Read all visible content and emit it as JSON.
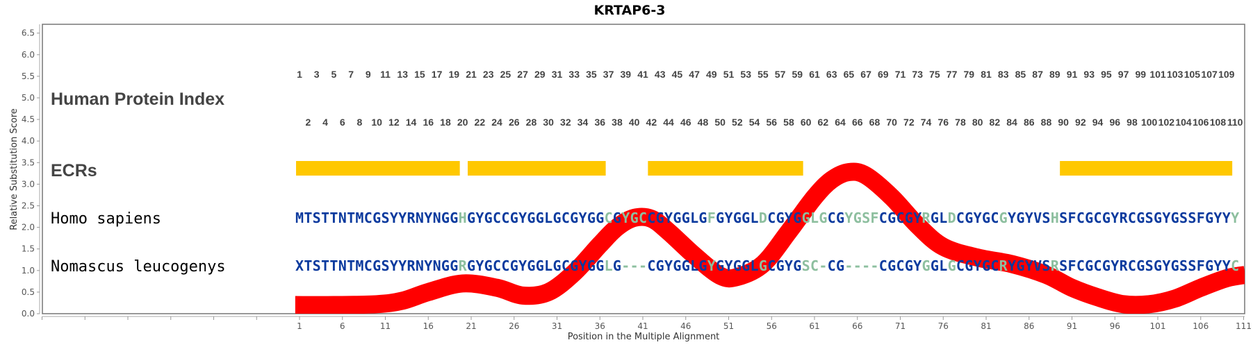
{
  "chart_data": {
    "type": "line",
    "title": "KRTAP6-3",
    "xlabel": "Position in the Multiple Alignment",
    "ylabel": "Relative Substitution Score",
    "xlim": [
      -29,
      111.2
    ],
    "ylim": [
      0,
      6.5
    ],
    "x_ticks": [
      1,
      6,
      11,
      16,
      21,
      26,
      31,
      36,
      41,
      46,
      51,
      56,
      61,
      66,
      71,
      76,
      81,
      86,
      91,
      96,
      101,
      106,
      111
    ],
    "y_ticks": [
      "0.0",
      "0.5",
      "1.0",
      "1.5",
      "2.0",
      "2.5",
      "3.0",
      "3.5",
      "4.0",
      "4.5",
      "5.0",
      "5.5",
      "6.0",
      "6.5"
    ],
    "grid": false,
    "series": [
      {
        "color": "#ff0000",
        "x": [
          0.5,
          5,
          10,
          13,
          16,
          20,
          24,
          27,
          30,
          33,
          36,
          38,
          40,
          42,
          44,
          47,
          50,
          52,
          55,
          58,
          61,
          63,
          65,
          67,
          70,
          73,
          76,
          80,
          84,
          88,
          91,
          94,
          97,
          100,
          103,
          106,
          109,
          111.2
        ],
        "y": [
          0.2,
          0.2,
          0.22,
          0.3,
          0.5,
          0.7,
          0.6,
          0.42,
          0.5,
          0.95,
          1.6,
          2.0,
          2.22,
          2.2,
          1.9,
          1.35,
          0.88,
          0.85,
          1.15,
          1.9,
          2.7,
          3.1,
          3.28,
          3.2,
          2.7,
          2.05,
          1.55,
          1.3,
          1.15,
          0.9,
          0.6,
          0.38,
          0.22,
          0.22,
          0.35,
          0.6,
          0.82,
          0.9
        ]
      }
    ],
    "row_labels": {
      "index": "Human Protein Index",
      "ecrs": "ECRs"
    },
    "human_index_start": 1,
    "human_index_end": 110,
    "ecrs": [
      [
        1,
        20
      ],
      [
        21,
        37
      ],
      [
        42,
        60
      ],
      [
        90,
        110
      ]
    ],
    "ecr_color": "#ffc800",
    "residue_colors": {
      "b": "#0b3a9e",
      "g": "#8dbf9f"
    },
    "sequences": [
      {
        "name": "Homo sapiens",
        "residues": "MTSTTNTMCGSYYRNYNGGHGYGCCGYGGLGCGYGGCGYGCCGYGGLGFGYGGLDCGYGGLGCGYGSFCGCGYRGLDCGYGCGYGYVSHSFCGCGYRCGSGYGSSFGYYY",
        "colors": "bbbbbbbbbbbbbbbbbbbgbbbbbbbbbbbbbbbbgbgggbbbbbbbgbbbbbgbbbbgggbbggggbbbbbgbbgbbbbbgbbbbbgbbbbbbbbbbbbbbbbbbbbg"
      },
      {
        "name": "Nomascus leucogenys",
        "residues": "XTSTTNTMCGSYYRNYNGGRGYGCCGYGGLGCGYGGLG---CGYGGLGYGYGGLGCGYGSC-CG----CGCGYGGLGCGYGCRYGYVSRSFCGCGYRCGSGYGSSFGYYC",
        "colors": "bbbbbbbbbbbbbbbbbbbgbbbbbbbbbbbbbbbbgbgggbbbbbbbgbbbbbgbbbbgggbbggggbbbbbgbbgbbbbbgbbbbbgbbbbbbbbbbbbbbbbbbbbg"
      }
    ]
  }
}
